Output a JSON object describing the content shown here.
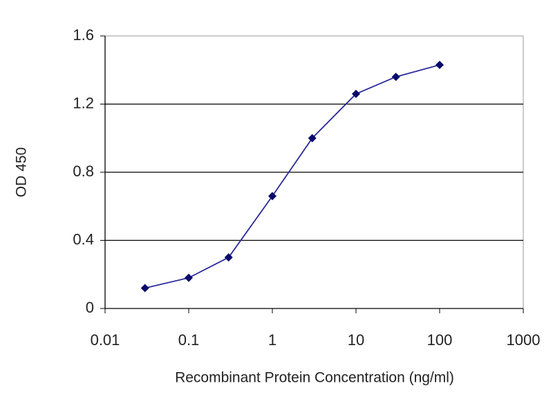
{
  "chart_data": {
    "type": "line",
    "xlabel": "Recombinant Protein Concentration (ng/ml)",
    "ylabel": "OD 450",
    "x": [
      0.03,
      0.1,
      0.3,
      1,
      3,
      10,
      30,
      100
    ],
    "series": [
      {
        "color": "#2a2a9a",
        "values": [
          0.12,
          0.18,
          0.3,
          0.66,
          1.0,
          1.26,
          1.36,
          1.43
        ]
      }
    ],
    "xscale": "log",
    "xlim": [
      0.01,
      1000
    ],
    "xticks": [
      0.01,
      0.1,
      1,
      10,
      100,
      1000
    ],
    "ylim": [
      0,
      1.6
    ],
    "yticks": [
      0,
      0.4,
      0.8,
      1.2,
      1.6
    ],
    "grid": true
  }
}
